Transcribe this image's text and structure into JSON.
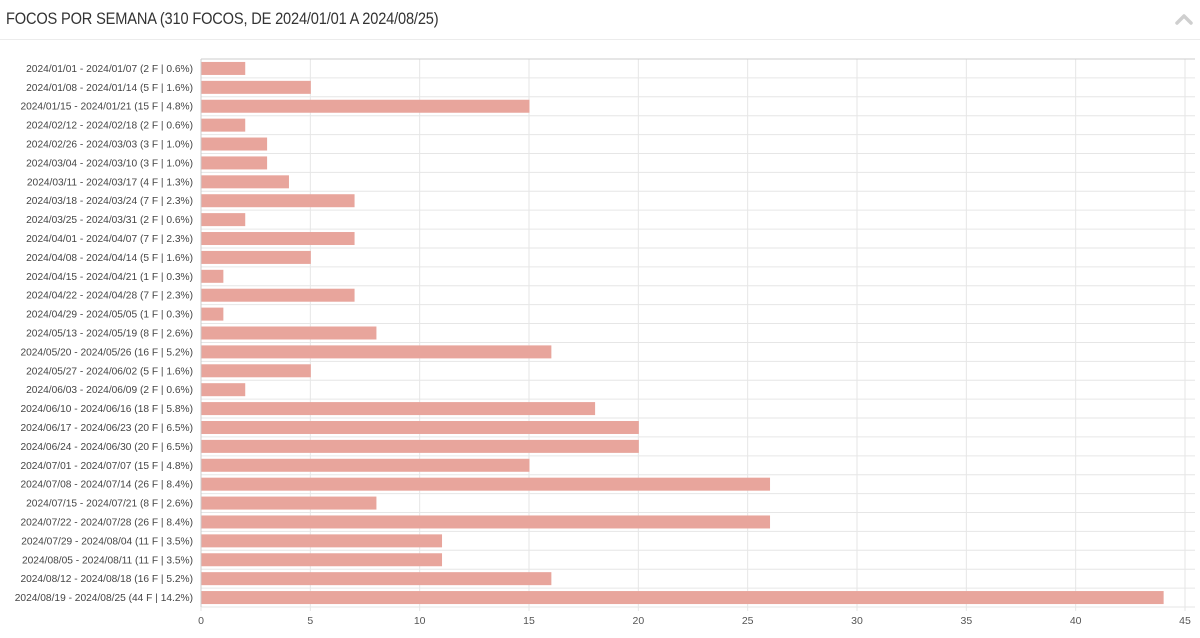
{
  "header": {
    "title": "FOCOS POR SEMANA (310 FOCOS, DE 2024/01/01 A 2024/08/25)",
    "collapse_icon": "chevron-up-icon"
  },
  "colors": {
    "bar": "#e8a59c",
    "grid": "#e6e6e6",
    "axis": "#cccccc"
  },
  "chart_data": {
    "type": "bar",
    "orientation": "horizontal",
    "title": "FOCOS POR SEMANA (310 FOCOS, DE 2024/01/01 A 2024/08/25)",
    "xlabel": "",
    "ylabel": "",
    "xlim": [
      0,
      45
    ],
    "xticks": [
      0,
      5,
      10,
      15,
      20,
      25,
      30,
      35,
      40,
      45
    ],
    "grid": true,
    "legend": "none",
    "categories": [
      "2024/01/01 - 2024/01/07 (2 F | 0.6%)",
      "2024/01/08 - 2024/01/14 (5 F | 1.6%)",
      "2024/01/15 - 2024/01/21 (15 F | 4.8%)",
      "2024/02/12 - 2024/02/18 (2 F | 0.6%)",
      "2024/02/26 - 2024/03/03 (3 F | 1.0%)",
      "2024/03/04 - 2024/03/10 (3 F | 1.0%)",
      "2024/03/11 - 2024/03/17 (4 F | 1.3%)",
      "2024/03/18 - 2024/03/24 (7 F | 2.3%)",
      "2024/03/25 - 2024/03/31 (2 F | 0.6%)",
      "2024/04/01 - 2024/04/07 (7 F | 2.3%)",
      "2024/04/08 - 2024/04/14 (5 F | 1.6%)",
      "2024/04/15 - 2024/04/21 (1 F | 0.3%)",
      "2024/04/22 - 2024/04/28 (7 F | 2.3%)",
      "2024/04/29 - 2024/05/05 (1 F | 0.3%)",
      "2024/05/13 - 2024/05/19 (8 F | 2.6%)",
      "2024/05/20 - 2024/05/26 (16 F | 5.2%)",
      "2024/05/27 - 2024/06/02 (5 F | 1.6%)",
      "2024/06/03 - 2024/06/09 (2 F | 0.6%)",
      "2024/06/10 - 2024/06/16 (18 F | 5.8%)",
      "2024/06/17 - 2024/06/23 (20 F | 6.5%)",
      "2024/06/24 - 2024/06/30 (20 F | 6.5%)",
      "2024/07/01 - 2024/07/07 (15 F | 4.8%)",
      "2024/07/08 - 2024/07/14 (26 F | 8.4%)",
      "2024/07/15 - 2024/07/21 (8 F | 2.6%)",
      "2024/07/22 - 2024/07/28 (26 F | 8.4%)",
      "2024/07/29 - 2024/08/04 (11 F | 3.5%)",
      "2024/08/05 - 2024/08/11 (11 F | 3.5%)",
      "2024/08/12 - 2024/08/18 (16 F | 5.2%)",
      "2024/08/19 - 2024/08/25 (44 F | 14.2%)"
    ],
    "values": [
      2,
      5,
      15,
      2,
      3,
      3,
      4,
      7,
      2,
      7,
      5,
      1,
      7,
      1,
      8,
      16,
      5,
      2,
      18,
      20,
      20,
      15,
      26,
      8,
      26,
      11,
      11,
      16,
      44
    ]
  }
}
